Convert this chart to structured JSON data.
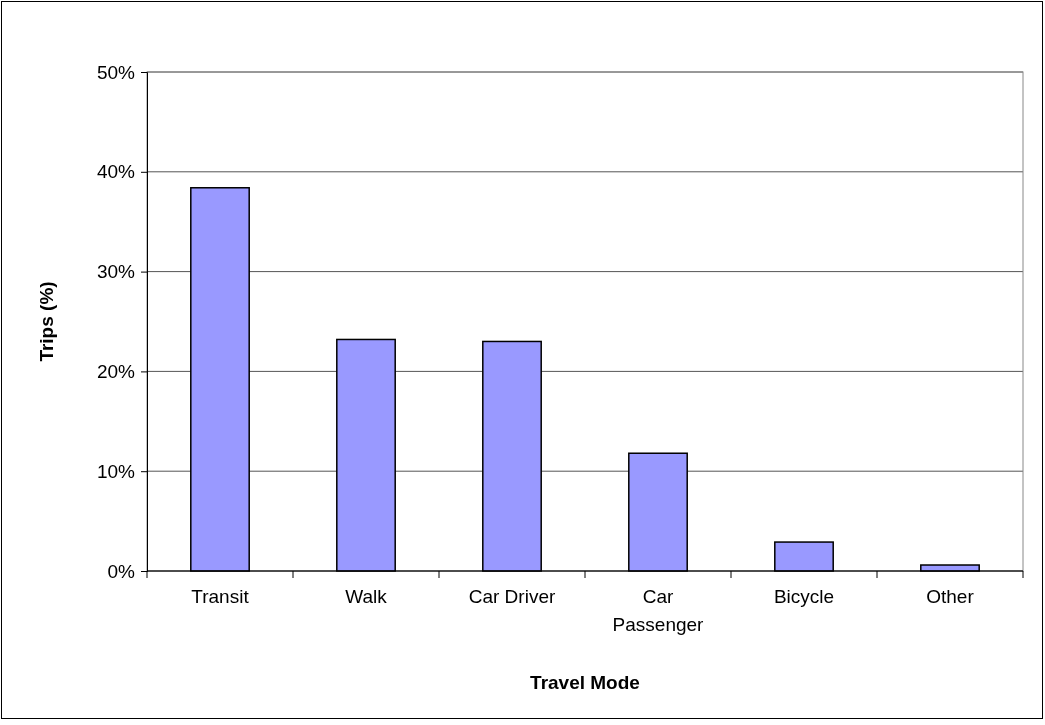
{
  "chart_data": {
    "type": "bar",
    "xlabel": "Travel Mode",
    "ylabel": "Trips (%)",
    "categories": [
      "Transit",
      "Walk",
      "Car Driver",
      "Car Passenger",
      "Bicycle",
      "Other"
    ],
    "values": [
      38.4,
      23.2,
      23.0,
      11.8,
      2.9,
      0.6
    ],
    "color": "#9999ff",
    "ylim": [
      0,
      50
    ],
    "yticks": [
      {
        "value": 0,
        "label": "0%"
      },
      {
        "value": 10,
        "label": "10%"
      },
      {
        "value": 20,
        "label": "20%"
      },
      {
        "value": 30,
        "label": "30%"
      },
      {
        "value": 40,
        "label": "40%"
      },
      {
        "value": 50,
        "label": "50%"
      }
    ],
    "grid": "y"
  }
}
